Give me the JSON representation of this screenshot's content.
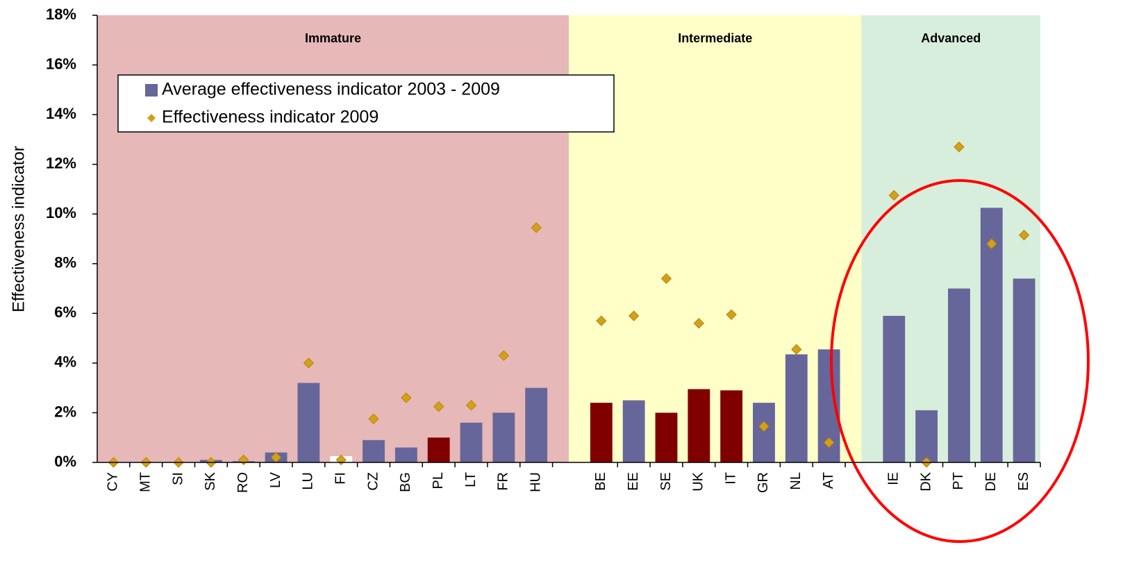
{
  "chart_data": {
    "type": "bar",
    "y_label": "Effectiveness indicator",
    "categories": [
      "CY",
      "MT",
      "SI",
      "SK",
      "RO",
      "LV",
      "LU",
      "FI",
      "CZ",
      "BG",
      "PL",
      "LT",
      "FR",
      "HU",
      null,
      "BE",
      "EE",
      "SE",
      "UK",
      "IT",
      "GR",
      "NL",
      "AT",
      null,
      "IE",
      "DK",
      "PT",
      "DE",
      "ES"
    ],
    "regions": [
      {
        "label": "Immature",
        "color": "#e6b8b8"
      },
      {
        "label": "Intermediate",
        "color": "#ffffc8"
      },
      {
        "label": "Advanced",
        "color": "#d8eedc"
      }
    ],
    "series": [
      {
        "name": "Average effectiveness indicator 2003 - 2009",
        "color": "#66669a",
        "marker": "square",
        "colors": [
          "#66669a",
          "#66669a",
          "#66669a",
          "#66669a",
          "#66669a",
          "#66669a",
          "#66669a",
          "#ffffff",
          "#66669a",
          "#66669a",
          "#800000",
          "#66669a",
          "#66669a",
          "#66669a",
          null,
          "#800000",
          "#66669a",
          "#800000",
          "#800000",
          "#800000",
          "#66669a",
          "#66669a",
          "#66669a",
          null,
          "#66669a",
          "#66669a",
          "#66669a",
          "#66669a",
          "#66669a"
        ],
        "values": [
          0,
          0,
          0,
          0.1,
          0.05,
          0.4,
          3.2,
          0.25,
          0.9,
          0.6,
          1.0,
          1.6,
          2.0,
          3.0,
          null,
          2.4,
          2.5,
          2.0,
          2.95,
          2.9,
          2.4,
          4.35,
          4.55,
          null,
          5.9,
          2.1,
          7.0,
          10.25,
          7.4
        ]
      },
      {
        "name": "Effectiveness indicator 2009",
        "color": "#d4a017",
        "marker": "diamond",
        "values": [
          0,
          0,
          0,
          0,
          0.1,
          0.2,
          4.0,
          0.1,
          1.75,
          2.6,
          2.25,
          2.3,
          4.3,
          9.45,
          null,
          5.7,
          5.9,
          7.4,
          5.6,
          5.95,
          1.45,
          4.55,
          0.8,
          null,
          10.75,
          0,
          12.7,
          8.8,
          9.15
        ]
      }
    ],
    "ylim": [
      0,
      18
    ],
    "yticks": [
      {
        "value": 0,
        "label": "0%"
      },
      {
        "value": 2,
        "label": "2%"
      },
      {
        "value": 4,
        "label": "4%"
      },
      {
        "value": 6,
        "label": "6%"
      },
      {
        "value": 8,
        "label": "8%"
      },
      {
        "value": 10,
        "label": "10%"
      },
      {
        "value": 12,
        "label": "12%"
      },
      {
        "value": 14,
        "label": "14%"
      },
      {
        "value": 16,
        "label": "16%"
      },
      {
        "value": 18,
        "label": "18%"
      }
    ]
  }
}
